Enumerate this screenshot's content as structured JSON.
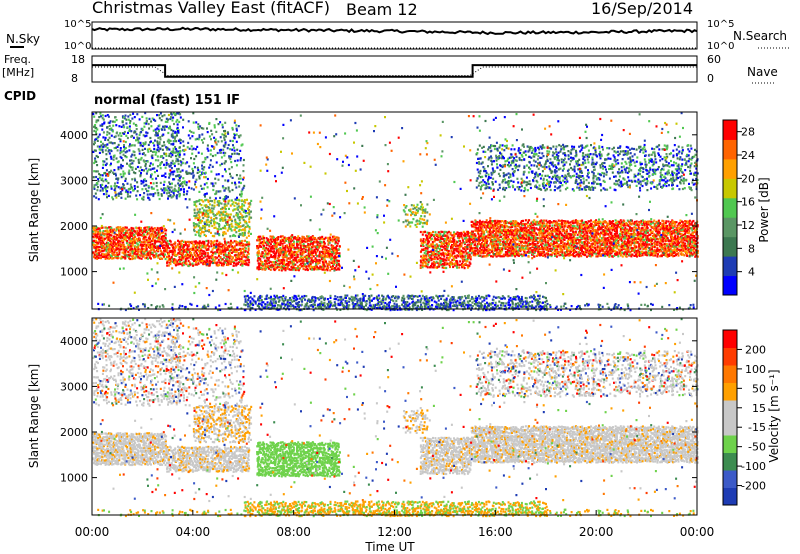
{
  "header": {
    "station": "Christmas Valley East (fitACF)",
    "beam": "Beam 12",
    "date": "16/Sep/2014"
  },
  "side_labels": {
    "nsky": "N.Sky",
    "freq_line1": "Freq.",
    "freq_line2": "[MHz]",
    "cpid": "CPID",
    "nsearch": "N.Search",
    "nave": "Nave",
    "cpid_text": "normal (fast) 151 IF"
  },
  "colors": {
    "power_scale": [
      "#0000ff",
      "#1e3cb4",
      "#3c7850",
      "#5a9664",
      "#50c850",
      "#c8c800",
      "#ffa000",
      "#ff6400",
      "#ff0000"
    ],
    "velocity_scale": [
      "#1e3cb4",
      "#3c5ac8",
      "#3c8c50",
      "#6ed24b",
      "#c8c8c8",
      "#c8c8c8",
      "#ffa000",
      "#ff7800",
      "#ff3c00",
      "#ff0000"
    ]
  },
  "chart_data": [
    {
      "type": "line",
      "name": "N.Sky / N.Search panel",
      "ylabel": "N.Sky",
      "right_label": "N.Search",
      "left_ticks": [
        "10^5",
        "10^0"
      ],
      "right_ticks": [
        "10^5",
        "10^0"
      ],
      "x": [
        "00:00",
        "04:00",
        "08:00",
        "12:00",
        "16:00",
        "20:00",
        "00:00"
      ],
      "series": [
        {
          "name": "N.Sky",
          "values": [
            3.6,
            3.7,
            3.5,
            3.3,
            3.0,
            3.1,
            3.4
          ]
        }
      ]
    },
    {
      "type": "line",
      "name": "Freq / Nave panel",
      "ylabel": "Freq. [MHz]",
      "right_label": "Nave",
      "left_ticks": [
        18,
        8
      ],
      "right_ticks": [
        60,
        0
      ],
      "x_hours": [
        0,
        2.9,
        2.9,
        15.1,
        15.1,
        24
      ],
      "series": [
        {
          "name": "Freq",
          "values": [
            14.5,
            14.5,
            10.0,
            10.0,
            14.5,
            14.5
          ]
        }
      ]
    },
    {
      "type": "heatmap",
      "name": "Power",
      "ylabel": "Slant Range [km]",
      "xlabel": "",
      "yticks": [
        1000,
        2000,
        3000,
        4000
      ],
      "ylim": [
        180,
        4500
      ],
      "xlim_hours": [
        0,
        24
      ],
      "colorbar_label": "Power [dB]",
      "colorbar_ticks": [
        4,
        8,
        12,
        16,
        20,
        24,
        28
      ],
      "colorbar_range": [
        0,
        30
      ]
    },
    {
      "type": "heatmap",
      "name": "Velocity",
      "ylabel": "Slant Range [km]",
      "xlabel": "Time UT",
      "xticks": [
        "00:00",
        "04:00",
        "08:00",
        "12:00",
        "16:00",
        "20:00",
        "00:00"
      ],
      "yticks": [
        1000,
        2000,
        3000,
        4000
      ],
      "ylim": [
        180,
        4500
      ],
      "xlim_hours": [
        0,
        24
      ],
      "colorbar_label": "Velocity [m s⁻¹]",
      "colorbar_ticks": [
        200,
        100,
        50,
        15,
        -15,
        -50,
        -100,
        -200
      ]
    }
  ]
}
